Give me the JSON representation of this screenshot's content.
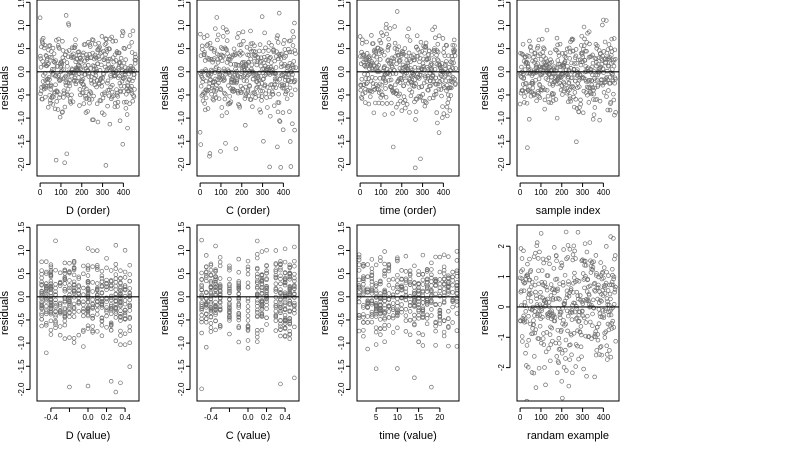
{
  "colors": {
    "points": "#6f6f6f",
    "frame": "#000000",
    "background": "#ffffff"
  },
  "chart_data": [
    {
      "type": "scatter",
      "xlabel": "D (order)",
      "ylabel": "residuals",
      "xlim": [
        -15,
        475
      ],
      "ylim": [
        -2.25,
        1.55
      ],
      "xticks": [
        0,
        100,
        200,
        300,
        400
      ],
      "yticks": [
        1.5,
        1.0,
        0.5,
        0.0,
        -0.5,
        -1.0,
        -1.5,
        -2.0
      ],
      "xtick_labels": [
        "0",
        "100",
        "200",
        "300",
        "400"
      ],
      "ytick_labels": [
        "1.5",
        "1.0",
        "0.5",
        "0.0",
        "-0.5",
        "-1.0",
        "-1.5",
        "-2.0"
      ],
      "reference_line": 0,
      "n": 460,
      "x_mode": "index",
      "x_values": [],
      "y_spread": 0.42
    },
    {
      "type": "scatter",
      "xlabel": "C (order)",
      "ylabel": "residuals",
      "xlim": [
        -15,
        475
      ],
      "ylim": [
        -2.25,
        1.55
      ],
      "xticks": [
        0,
        100,
        200,
        300,
        400
      ],
      "yticks": [
        1.5,
        1.0,
        0.5,
        0.0,
        -0.5,
        -1.0,
        -1.5,
        -2.0
      ],
      "xtick_labels": [
        "0",
        "100",
        "200",
        "300",
        "400"
      ],
      "ytick_labels": [
        "1.5",
        "1.0",
        "0.5",
        "0.0",
        "-0.5",
        "-1.0",
        "-1.5",
        "-2.0"
      ],
      "reference_line": 0,
      "n": 460,
      "x_mode": "index",
      "x_values": [],
      "y_spread": 0.42
    },
    {
      "type": "scatter",
      "xlabel": "time (order)",
      "ylabel": "residuals",
      "xlim": [
        -15,
        475
      ],
      "ylim": [
        -2.25,
        1.55
      ],
      "xticks": [
        0,
        100,
        200,
        300,
        400
      ],
      "yticks": [
        1.5,
        1.0,
        0.5,
        0.0,
        -0.5,
        -1.0,
        -1.5,
        -2.0
      ],
      "xtick_labels": [
        "0",
        "100",
        "200",
        "300",
        "400"
      ],
      "ytick_labels": [
        "1.5",
        "1.0",
        "0.5",
        "0.0",
        "-0.5",
        "-1.0",
        "-1.5",
        "-2.0"
      ],
      "reference_line": 0,
      "n": 460,
      "x_mode": "index",
      "x_values": [],
      "y_spread": 0.42
    },
    {
      "type": "scatter",
      "xlabel": "sample index",
      "ylabel": "residuals",
      "xlim": [
        -15,
        475
      ],
      "ylim": [
        -2.25,
        1.55
      ],
      "xticks": [
        0,
        100,
        200,
        300,
        400
      ],
      "yticks": [
        1.5,
        1.0,
        0.5,
        0.0,
        -0.5,
        -1.0,
        -1.5,
        -2.0
      ],
      "xtick_labels": [
        "0",
        "100",
        "200",
        "300",
        "400"
      ],
      "ytick_labels": [
        "1.5",
        "1.0",
        "0.5",
        "0.0",
        "-0.5",
        "-1.0",
        "-1.5",
        "-2.0"
      ],
      "reference_line": 0,
      "n": 460,
      "x_mode": "index",
      "x_values": [],
      "y_spread": 0.42
    },
    {
      "type": "scatter",
      "xlabel": "D (value)",
      "ylabel": "residuals",
      "xlim": [
        -0.55,
        0.55
      ],
      "ylim": [
        -2.25,
        1.55
      ],
      "xticks": [
        -0.4,
        -0.2,
        0.0,
        0.2,
        0.4
      ],
      "yticks": [
        1.5,
        1.0,
        0.5,
        0.0,
        -0.5,
        -1.0,
        -1.5,
        -2.0
      ],
      "xtick_labels": [
        "-0.4",
        "",
        "0.0",
        "0.2",
        "0.4"
      ],
      "ytick_labels": [
        "1.5",
        "1.0",
        "0.5",
        "0.0",
        "-0.5",
        "-1.0",
        "-1.5",
        "-2.0"
      ],
      "reference_line": 0,
      "n": 460,
      "x_mode": "levels",
      "x_values": [
        -0.5,
        -0.45,
        -0.4,
        -0.35,
        -0.3,
        -0.25,
        -0.2,
        -0.15,
        -0.1,
        -0.05,
        0.0,
        0.05,
        0.1,
        0.15,
        0.2,
        0.25,
        0.3,
        0.35,
        0.4,
        0.45
      ],
      "y_spread": 0.42
    },
    {
      "type": "scatter",
      "xlabel": "C (value)",
      "ylabel": "residuals",
      "xlim": [
        -0.55,
        0.55
      ],
      "ylim": [
        -2.25,
        1.55
      ],
      "xticks": [
        -0.4,
        -0.2,
        0.0,
        0.2,
        0.4
      ],
      "yticks": [
        1.5,
        1.0,
        0.5,
        0.0,
        -0.5,
        -1.0,
        -1.5,
        -2.0
      ],
      "xtick_labels": [
        "-0.4",
        "",
        "0.0",
        "0.2",
        "0.4"
      ],
      "ytick_labels": [
        "1.5",
        "1.0",
        "0.5",
        "0.0",
        "-0.5",
        "-1.0",
        "-1.5",
        "-2.0"
      ],
      "reference_line": 0,
      "n": 460,
      "x_mode": "levels",
      "x_values": [
        -0.5,
        -0.45,
        -0.4,
        -0.35,
        -0.3,
        -0.2,
        -0.1,
        0.0,
        0.1,
        0.15,
        0.2,
        0.3,
        0.35,
        0.4,
        0.45,
        0.5
      ],
      "y_spread": 0.42
    },
    {
      "type": "scatter",
      "xlabel": "time (value)",
      "ylabel": "residuals",
      "xlim": [
        0.5,
        24.5
      ],
      "ylim": [
        -2.25,
        1.55
      ],
      "xticks": [
        5,
        10,
        15,
        20
      ],
      "yticks": [
        1.5,
        1.0,
        0.5,
        0.0,
        -0.5,
        -1.0,
        -1.5,
        -2.0
      ],
      "xtick_labels": [
        "5",
        "10",
        "15",
        "20"
      ],
      "ytick_labels": [
        "1.5",
        "1.0",
        "0.5",
        "0.0",
        "-0.5",
        "-1.0",
        "-1.5",
        "-2.0"
      ],
      "reference_line": 0,
      "n": 460,
      "x_mode": "levels",
      "x_values": [
        1,
        2,
        3,
        4,
        5,
        6,
        7,
        8,
        9,
        10,
        11,
        12,
        13,
        14,
        15,
        16,
        17,
        18,
        19,
        20,
        21,
        22,
        23,
        24
      ],
      "y_spread": 0.42
    },
    {
      "type": "scatter",
      "xlabel": "randam example",
      "ylabel": "residuals",
      "xlim": [
        -15,
        475
      ],
      "ylim": [
        -3.1,
        2.7
      ],
      "xticks": [
        0,
        100,
        200,
        300,
        400
      ],
      "yticks": [
        2,
        1,
        0,
        -1,
        -2
      ],
      "xtick_labels": [
        "0",
        "100",
        "200",
        "300",
        "400"
      ],
      "ytick_labels": [
        "2",
        "1",
        "0",
        "-1",
        "-2"
      ],
      "reference_line": 0,
      "n": 460,
      "x_mode": "index",
      "x_values": [],
      "y_spread": 1.0
    }
  ]
}
